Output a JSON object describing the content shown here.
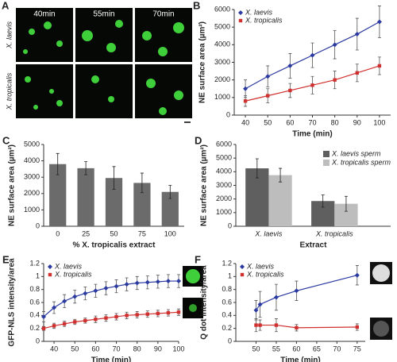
{
  "image_grid": {
    "label": "A",
    "columns": [
      "40min",
      "55min",
      "70min"
    ],
    "rows": [
      "X. laevis",
      "X. tropicalis"
    ]
  },
  "chart_data": [
    {
      "type": "line",
      "label": "B",
      "x_label": "Time (min)",
      "y_label": "NE surface area (µm²)",
      "xlim": [
        35,
        105
      ],
      "xticks": [
        40,
        50,
        60,
        70,
        80,
        90,
        100
      ],
      "ylim": [
        0,
        6000
      ],
      "yticks": [
        0,
        1000,
        2000,
        3000,
        4000,
        5000,
        6000
      ],
      "legend": "top-left",
      "series": [
        {
          "name": "X. laevis",
          "color": "#2b3aa0",
          "marker": "diamond",
          "x": [
            40,
            50,
            60,
            70,
            80,
            90,
            100
          ],
          "values": [
            1500,
            2200,
            2800,
            3400,
            4000,
            4600,
            5300
          ],
          "errors": [
            500,
            600,
            700,
            700,
            800,
            900,
            900
          ]
        },
        {
          "name": "X. tropicalis",
          "color": "#d0302f",
          "marker": "square",
          "x": [
            40,
            50,
            60,
            70,
            80,
            90,
            100
          ],
          "values": [
            800,
            1100,
            1400,
            1700,
            2000,
            2400,
            2800
          ],
          "errors": [
            300,
            400,
            400,
            500,
            500,
            500,
            500
          ]
        }
      ]
    },
    {
      "type": "bar",
      "label": "C",
      "x_label": "% X. tropicalis extract",
      "y_label": "NE surface area (µm²)",
      "categories": [
        "0",
        "25",
        "50",
        "75",
        "100"
      ],
      "values": [
        3800,
        3550,
        2950,
        2650,
        2100
      ],
      "errors": [
        650,
        400,
        700,
        600,
        400
      ],
      "color": "#6b6b6b",
      "ylim": [
        0,
        5000
      ],
      "yticks": [
        0,
        1000,
        2000,
        3000,
        4000,
        5000
      ]
    },
    {
      "type": "grouped_bar",
      "label": "D",
      "x_label": "Extract",
      "y_label": "NE surface area (µm²)",
      "categories": [
        "X. laevis",
        "X. tropicalis"
      ],
      "ylim": [
        0,
        6000
      ],
      "yticks": [
        0,
        1000,
        2000,
        3000,
        4000,
        5000,
        6000
      ],
      "legend": "top-right",
      "series": [
        {
          "name": "X. laevis sperm",
          "color": "#5f5f5f",
          "values": [
            4250,
            1850
          ],
          "errors": [
            700,
            450
          ]
        },
        {
          "name": "X. tropicalis sperm",
          "color": "#bdbdbd",
          "values": [
            3750,
            1650
          ],
          "errors": [
            500,
            550
          ]
        }
      ]
    },
    {
      "type": "line",
      "label": "E",
      "x_label": "Time (min)",
      "y_label": "GFP-NLS intensity/area",
      "xlim": [
        35,
        100
      ],
      "xticks": [
        40,
        50,
        60,
        70,
        80,
        90,
        100
      ],
      "ylim": [
        0,
        1.2
      ],
      "yticks": [
        0,
        0.2,
        0.4,
        0.6,
        0.8,
        1,
        1.2
      ],
      "legend": "top-left",
      "series": [
        {
          "name": "X. laevis",
          "color": "#2b3aa0",
          "marker": "diamond",
          "x": [
            35,
            40,
            45,
            50,
            55,
            60,
            65,
            70,
            75,
            80,
            85,
            90,
            95,
            100
          ],
          "values": [
            0.38,
            0.52,
            0.62,
            0.69,
            0.74,
            0.78,
            0.82,
            0.85,
            0.88,
            0.9,
            0.91,
            0.92,
            0.93,
            0.93
          ],
          "errors": [
            0.08,
            0.09,
            0.1,
            0.1,
            0.1,
            0.1,
            0.1,
            0.1,
            0.1,
            0.1,
            0.1,
            0.1,
            0.1,
            0.1
          ]
        },
        {
          "name": "X. tropicalis",
          "color": "#d0302f",
          "marker": "square",
          "x": [
            35,
            40,
            45,
            50,
            55,
            60,
            65,
            70,
            75,
            80,
            85,
            90,
            95,
            100
          ],
          "values": [
            0.2,
            0.24,
            0.27,
            0.3,
            0.32,
            0.34,
            0.36,
            0.38,
            0.4,
            0.41,
            0.42,
            0.43,
            0.44,
            0.45
          ],
          "errors": [
            0.03,
            0.04,
            0.04,
            0.04,
            0.04,
            0.05,
            0.05,
            0.05,
            0.05,
            0.05,
            0.05,
            0.05,
            0.05,
            0.05
          ]
        }
      ]
    },
    {
      "type": "line",
      "label": "F",
      "x_label": "Time (min)",
      "y_label": "Q dot intensity/area",
      "xlim": [
        45,
        77
      ],
      "xticks": [
        50,
        55,
        60,
        65,
        70,
        75
      ],
      "ylim": [
        0,
        1.2
      ],
      "yticks": [
        0,
        0.2,
        0.4,
        0.6,
        0.8,
        1,
        1.2
      ],
      "legend": "top-left",
      "series": [
        {
          "name": "X. laevis",
          "color": "#2b3aa0",
          "marker": "diamond",
          "x": [
            50,
            51,
            55,
            60,
            75
          ],
          "values": [
            0.48,
            0.57,
            0.68,
            0.78,
            1.02
          ],
          "errors": [
            0.15,
            0.2,
            0.2,
            0.15,
            0.15
          ]
        },
        {
          "name": "X. tropicalis",
          "color": "#d0302f",
          "marker": "square",
          "x": [
            50,
            51,
            55,
            60,
            75
          ],
          "values": [
            0.25,
            0.25,
            0.25,
            0.21,
            0.22
          ],
          "errors": [
            0.1,
            0.08,
            0.1,
            0.05,
            0.05
          ]
        }
      ]
    }
  ]
}
